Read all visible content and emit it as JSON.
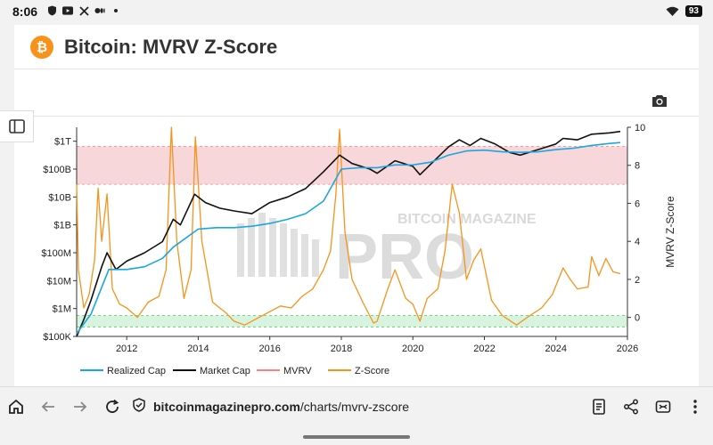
{
  "status_bar": {
    "time": "8:06",
    "left_icons": [
      "shield-icon",
      "youtube-icon",
      "x-logo-icon",
      "medium-icon",
      "dot-icon"
    ],
    "battery": "93"
  },
  "page": {
    "title": "Bitcoin: MVRV Z-Score",
    "logo_glyph": "₿"
  },
  "chart_data": {
    "type": "line",
    "title": "",
    "x_ticks": [
      "2012",
      "2014",
      "2016",
      "2018",
      "2020",
      "2022",
      "2024",
      "2026"
    ],
    "x_range": [
      2010.6,
      2026.0
    ],
    "left_axis": {
      "type": "log",
      "ticks": [
        "$100K",
        "$1M",
        "$10M",
        "$100M",
        "$1B",
        "$10B",
        "$100B",
        "$1T"
      ],
      "range_log10": [
        5,
        12.5
      ]
    },
    "right_axis": {
      "label": "MVRV Z-Score",
      "ticks": [
        "0",
        "2",
        "4",
        "6",
        "8",
        "10"
      ],
      "range": [
        -1,
        10
      ]
    },
    "bands": [
      {
        "name": "overvalued-zone",
        "from": 7,
        "to": 9,
        "color": "#f8d7da"
      },
      {
        "name": "undervalued-zone",
        "from": -0.5,
        "to": 0.1,
        "color": "#d8f3e0"
      }
    ],
    "series": [
      {
        "name": "Realized Cap",
        "color": "#1aa7df",
        "axis": "left",
        "x": [
          2010.6,
          2011.0,
          2011.5,
          2012.0,
          2012.5,
          2013.0,
          2013.3,
          2014.0,
          2014.5,
          2015.0,
          2015.5,
          2016.0,
          2016.5,
          2017.0,
          2017.5,
          2018.0,
          2018.5,
          2019.0,
          2019.5,
          2020.0,
          2020.5,
          2021.0,
          2021.5,
          2022.0,
          2022.5,
          2023.0,
          2023.5,
          2024.0,
          2024.5,
          2025.0,
          2025.5,
          2025.8
        ],
        "y": [
          5.1,
          5.8,
          7.4,
          7.4,
          7.5,
          7.8,
          8.2,
          8.85,
          8.9,
          8.9,
          8.95,
          9.05,
          9.2,
          9.4,
          9.85,
          11.0,
          11.05,
          11.05,
          11.15,
          11.15,
          11.25,
          11.5,
          11.65,
          11.68,
          11.62,
          11.6,
          11.62,
          11.7,
          11.75,
          11.85,
          11.92,
          11.95
        ]
      },
      {
        "name": "Market Cap",
        "color": "#111111",
        "axis": "left",
        "x": [
          2010.6,
          2010.8,
          2011.0,
          2011.3,
          2011.45,
          2011.7,
          2012.0,
          2012.5,
          2013.0,
          2013.3,
          2013.5,
          2013.9,
          2014.2,
          2014.6,
          2015.0,
          2015.5,
          2016.0,
          2016.5,
          2017.0,
          2017.5,
          2017.95,
          2018.3,
          2018.8,
          2019.0,
          2019.5,
          2020.0,
          2020.2,
          2020.6,
          2021.0,
          2021.3,
          2021.6,
          2021.9,
          2022.3,
          2022.7,
          2023.0,
          2023.5,
          2024.0,
          2024.2,
          2024.6,
          2025.0,
          2025.5,
          2025.8
        ],
        "y": [
          5.0,
          5.6,
          6.3,
          7.5,
          8.0,
          7.4,
          7.7,
          8.0,
          8.4,
          9.2,
          9.0,
          10.1,
          9.8,
          9.6,
          9.5,
          9.4,
          9.8,
          10.0,
          10.3,
          10.9,
          11.5,
          11.2,
          11.0,
          10.85,
          11.3,
          11.1,
          10.8,
          11.3,
          11.8,
          12.05,
          11.85,
          12.1,
          11.9,
          11.6,
          11.5,
          11.7,
          11.9,
          12.1,
          12.05,
          12.25,
          12.3,
          12.35
        ]
      },
      {
        "name": "MVRV",
        "color": "#ff7f7f",
        "axis": "right",
        "x": [],
        "y": []
      },
      {
        "name": "Z-Score",
        "color": "#f7931a",
        "axis": "right",
        "x": [
          2010.6,
          2010.65,
          2010.8,
          2010.95,
          2011.1,
          2011.2,
          2011.3,
          2011.45,
          2011.6,
          2011.8,
          2012.0,
          2012.3,
          2012.6,
          2012.9,
          2013.1,
          2013.25,
          2013.4,
          2013.6,
          2013.8,
          2013.92,
          2014.1,
          2014.4,
          2014.8,
          2015.0,
          2015.3,
          2015.7,
          2016.0,
          2016.3,
          2016.6,
          2016.9,
          2017.2,
          2017.5,
          2017.7,
          2017.85,
          2017.95,
          2018.1,
          2018.3,
          2018.6,
          2018.9,
          2019.0,
          2019.3,
          2019.5,
          2019.8,
          2020.0,
          2020.2,
          2020.4,
          2020.7,
          2020.9,
          2021.1,
          2021.3,
          2021.5,
          2021.7,
          2021.9,
          2022.2,
          2022.5,
          2022.9,
          2023.2,
          2023.6,
          2023.9,
          2024.2,
          2024.4,
          2024.6,
          2024.9,
          2025.0,
          2025.2,
          2025.4,
          2025.6,
          2025.8
        ],
        "y": [
          7.0,
          2.5,
          0.5,
          1.2,
          3.0,
          6.8,
          4.0,
          6.5,
          1.5,
          0.7,
          0.5,
          0.0,
          0.8,
          1.1,
          2.5,
          10.0,
          4.0,
          1.0,
          2.5,
          9.5,
          4.0,
          0.8,
          0.2,
          -0.2,
          -0.4,
          0.0,
          0.3,
          0.6,
          0.5,
          1.1,
          1.5,
          2.5,
          3.5,
          6.5,
          9.9,
          4.5,
          2.0,
          0.8,
          -0.3,
          -0.2,
          1.5,
          2.5,
          1.0,
          0.7,
          -0.2,
          1.0,
          1.5,
          3.5,
          7.0,
          5.5,
          2.0,
          3.0,
          3.6,
          0.9,
          0.1,
          -0.4,
          0.0,
          0.5,
          1.2,
          2.6,
          2.0,
          1.5,
          1.6,
          3.2,
          2.2,
          3.1,
          2.4,
          2.3
        ]
      }
    ],
    "legend": [
      {
        "label": "Realized Cap",
        "color": "#1aa7df"
      },
      {
        "label": "Market Cap",
        "color": "#111111"
      },
      {
        "label": "MVRV",
        "color": "#ff7f7f"
      },
      {
        "label": "Z-Score",
        "color": "#f7931a"
      }
    ],
    "watermark": "BITCOIN MAGAZINE PRO"
  },
  "browser": {
    "url_domain": "bitcoinmagazinepro.com",
    "url_path": "/charts/mvrv-zscore"
  }
}
